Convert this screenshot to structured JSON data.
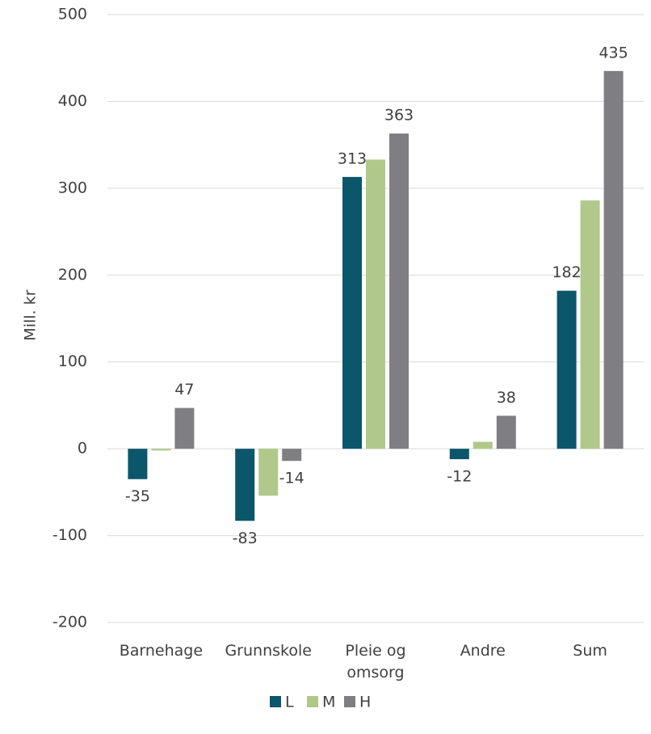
{
  "chart_data": {
    "type": "bar",
    "y_label": "Mill. kr",
    "categories": [
      "Barnehage",
      "Grunnskole",
      "Pleie og omsorg",
      "Andre",
      "Sum"
    ],
    "series": [
      {
        "name": "L",
        "color": "#0b566b",
        "values": [
          -35,
          -83,
          313,
          -12,
          182
        ],
        "value_labels": [
          "-35",
          "-83",
          "313",
          "-12",
          "182"
        ]
      },
      {
        "name": "M",
        "color": "#b0c98a",
        "values": [
          -2,
          -54,
          333,
          8,
          286
        ],
        "value_labels": [
          null,
          null,
          null,
          null,
          null
        ]
      },
      {
        "name": "H",
        "color": "#7f7f83",
        "values": [
          47,
          -14,
          363,
          38,
          435
        ],
        "value_labels": [
          "47",
          "-14",
          "363",
          "38",
          "435"
        ]
      }
    ],
    "ylim": [
      -200,
      500
    ],
    "yticks": [
      -200,
      -100,
      0,
      100,
      200,
      300,
      400,
      500
    ],
    "grid": true,
    "legend": "bottom"
  }
}
